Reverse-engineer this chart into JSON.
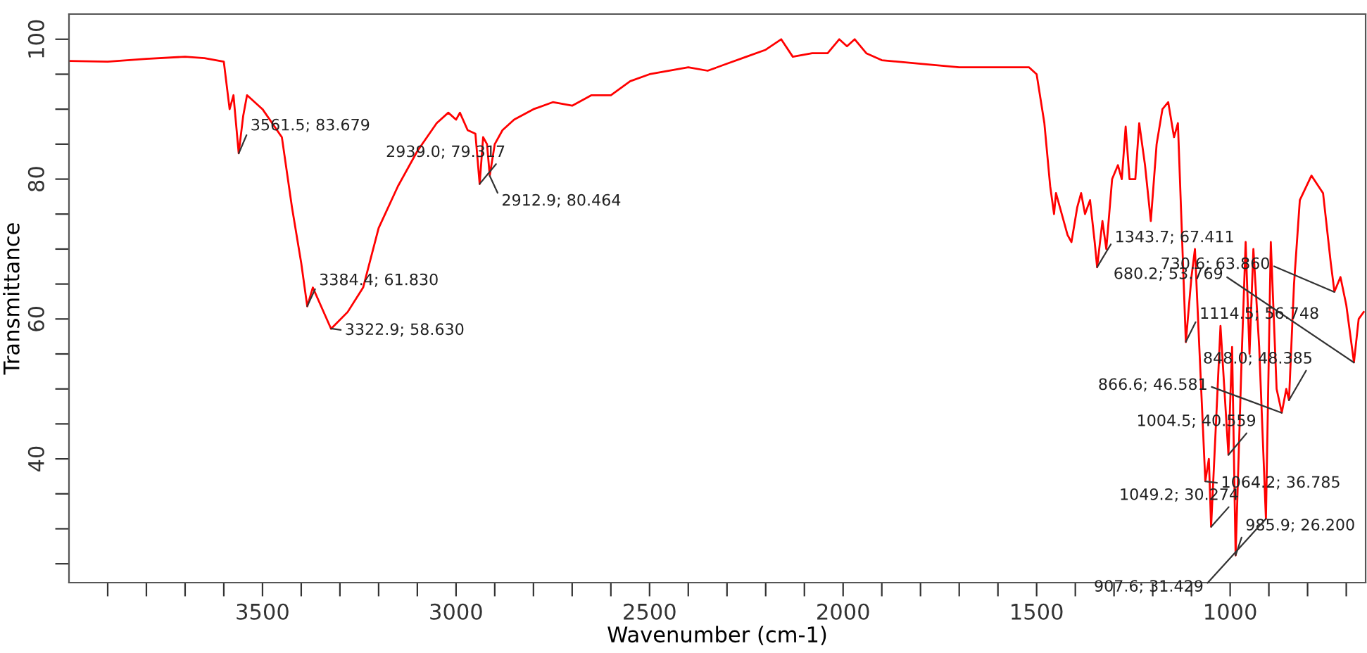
{
  "chart_data": {
    "type": "line",
    "xlabel": "Wavenumber (cm-1)",
    "ylabel": "Transmittance",
    "x": [
      4000,
      3900,
      3800,
      3700,
      3650,
      3600,
      3585,
      3575,
      3561.5,
      3550,
      3540,
      3500,
      3450,
      3424,
      3400,
      3384.4,
      3370,
      3350,
      3322.9,
      3280,
      3240,
      3200,
      3150,
      3100,
      3050,
      3020,
      3000,
      2990,
      2970,
      2950,
      2939.0,
      2930,
      2920,
      2912.9,
      2900,
      2880,
      2850,
      2800,
      2750,
      2700,
      2650,
      2600,
      2550,
      2500,
      2400,
      2350,
      2300,
      2250,
      2200,
      2160,
      2130,
      2080,
      2040,
      2010,
      1990,
      1970,
      1940,
      1900,
      1800,
      1700,
      1600,
      1520,
      1500,
      1480,
      1465,
      1455,
      1450,
      1440,
      1420,
      1410,
      1395,
      1385,
      1375,
      1362,
      1350,
      1343.7,
      1330,
      1320,
      1305,
      1290,
      1280,
      1270,
      1260,
      1245,
      1235,
      1220,
      1205,
      1190,
      1175,
      1160,
      1145,
      1135,
      1114.5,
      1100,
      1091,
      1064.2,
      1055,
      1049.2,
      1035,
      1025,
      1004.5,
      995,
      985.9,
      970,
      960,
      950,
      940,
      925,
      907.6,
      895,
      880,
      866.6,
      855,
      848.0,
      835,
      820,
      790,
      760,
      740,
      730.6,
      715,
      700,
      680.2,
      668,
      655
    ],
    "series": [
      {
        "color": "#ff0000",
        "values": [
          96.9,
          96.8,
          97.2,
          97.5,
          97.3,
          96.8,
          90,
          92,
          83.7,
          89,
          92,
          90,
          86,
          76,
          68,
          61.8,
          64.5,
          62,
          58.6,
          61,
          64.5,
          73,
          79,
          84,
          88,
          89.5,
          88.5,
          89.5,
          87,
          86.5,
          79.3,
          86,
          85,
          80.5,
          85,
          87,
          88.5,
          90,
          91,
          90.5,
          92,
          92,
          94,
          95,
          96,
          95.5,
          96.5,
          97.5,
          98.5,
          100,
          97.5,
          98,
          98,
          100,
          99,
          100,
          98,
          97,
          96.5,
          96,
          96,
          96,
          95,
          88,
          79,
          75,
          78,
          76,
          72,
          71,
          76,
          78,
          75,
          77,
          71,
          67.4,
          74,
          70,
          80,
          82,
          80,
          87.5,
          80,
          80,
          88,
          82,
          74,
          85,
          90,
          91,
          86,
          88,
          56.7,
          66,
          70,
          36.8,
          40,
          30.3,
          47,
          59,
          40.6,
          56,
          26.2,
          55,
          71,
          55,
          70,
          56,
          31.4,
          71,
          50,
          46.6,
          50,
          48.4,
          65,
          77,
          80.5,
          78,
          68,
          63.9,
          66,
          62,
          53.8,
          60,
          61
        ]
      }
    ],
    "xlim": [
      4000,
      650
    ],
    "ylim": [
      22.3,
      103.6
    ],
    "xticks": [
      {
        "value": 3900,
        "label": null
      },
      {
        "value": 3800,
        "label": null
      },
      {
        "value": 3700,
        "label": null
      },
      {
        "value": 3600,
        "label": null
      },
      3500,
      {
        "value": 3400,
        "label": null
      },
      {
        "value": 3300,
        "label": null
      },
      {
        "value": 3200,
        "label": null
      },
      {
        "value": 3100,
        "label": null
      },
      3000,
      {
        "value": 2900,
        "label": null
      },
      {
        "value": 2800,
        "label": null
      },
      {
        "value": 2700,
        "label": null
      },
      {
        "value": 2600,
        "label": null
      },
      2500,
      {
        "value": 2400,
        "label": null
      },
      {
        "value": 2300,
        "label": null
      },
      {
        "value": 2200,
        "label": null
      },
      {
        "value": 2100,
        "label": null
      },
      2000,
      {
        "value": 1900,
        "label": null
      },
      {
        "value": 1800,
        "label": null
      },
      {
        "value": 1700,
        "label": null
      },
      {
        "value": 1600,
        "label": null
      },
      1500,
      {
        "value": 1400,
        "label": null
      },
      {
        "value": 1300,
        "label": null
      },
      {
        "value": 1200,
        "label": null
      },
      {
        "value": 1100,
        "label": null
      },
      1000,
      {
        "value": 900,
        "label": null
      },
      {
        "value": 800,
        "label": null
      },
      {
        "value": 700,
        "label": null
      }
    ],
    "yticks": [
      {
        "value": 25,
        "label": null
      },
      {
        "value": 30,
        "label": null
      },
      {
        "value": 35,
        "label": null
      },
      40,
      {
        "value": 45,
        "label": null
      },
      {
        "value": 50,
        "label": null
      },
      {
        "value": 55,
        "label": null
      },
      60,
      {
        "value": 65,
        "label": null
      },
      {
        "value": 70,
        "label": null
      },
      {
        "value": 75,
        "label": null
      },
      80,
      {
        "value": 85,
        "label": null
      },
      {
        "value": 90,
        "label": null
      },
      {
        "value": 95,
        "label": null
      },
      100
    ],
    "grid": false,
    "legend": false,
    "marker": "none",
    "line_style": "solid",
    "annotations": [
      {
        "text": "3561.5; 83.679",
        "x": 3561.5,
        "y": 83.679
      },
      {
        "text": "3384.4; 61.830",
        "x": 3384.4,
        "y": 61.83
      },
      {
        "text": "3322.9; 58.630",
        "x": 3322.9,
        "y": 58.63
      },
      {
        "text": "2939.0; 79.317",
        "x": 2939.0,
        "y": 79.317
      },
      {
        "text": "2912.9; 80.464",
        "x": 2912.9,
        "y": 80.464
      },
      {
        "text": "1343.7; 67.411",
        "x": 1343.7,
        "y": 67.411
      },
      {
        "text": "730.6; 63.860",
        "x": 730.6,
        "y": 63.86
      },
      {
        "text": "680.2; 53.769",
        "x": 680.2,
        "y": 53.769
      },
      {
        "text": "1114.5; 56.748",
        "x": 1114.5,
        "y": 56.748
      },
      {
        "text": "848.0; 48.385",
        "x": 848.0,
        "y": 48.385
      },
      {
        "text": "866.6; 46.581",
        "x": 866.6,
        "y": 46.581
      },
      {
        "text": "1004.5; 40.559",
        "x": 1004.5,
        "y": 40.559
      },
      {
        "text": "1064.2; 36.785",
        "x": 1064.2,
        "y": 36.785
      },
      {
        "text": "1049.2; 30.274",
        "x": 1049.2,
        "y": 30.274
      },
      {
        "text": "985.9; 26.200",
        "x": 985.9,
        "y": 26.2
      },
      {
        "text": "907.6; 31.429",
        "x": 907.6,
        "y": 31.429
      }
    ]
  }
}
